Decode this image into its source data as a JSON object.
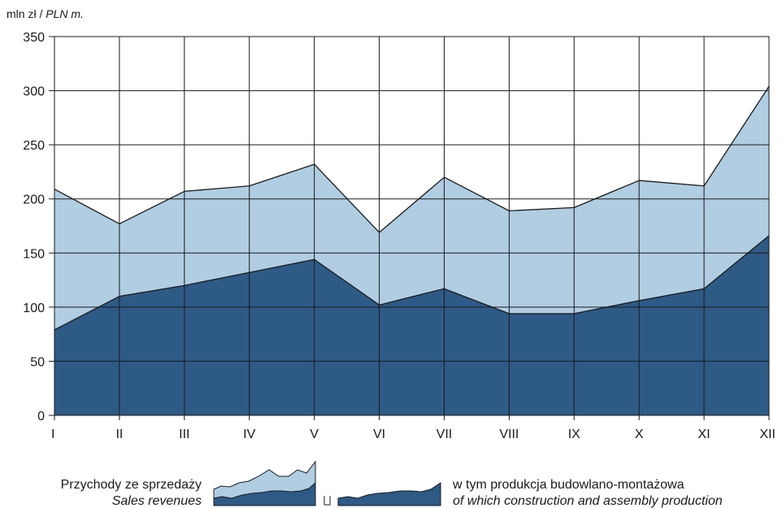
{
  "chart_data": {
    "type": "area",
    "unit_label": "mln zł / ",
    "unit_label_italic": "PLN m.",
    "categories": [
      "I",
      "II",
      "III",
      "IV",
      "V",
      "VI",
      "VII",
      "VIII",
      "IX",
      "X",
      "XI",
      "XII"
    ],
    "series": [
      {
        "key": "sales",
        "values": [
          209,
          177,
          207,
          212,
          232,
          169,
          220,
          189,
          192,
          217,
          212,
          304
        ],
        "color": "#b0cde2"
      },
      {
        "key": "construction",
        "values": [
          79,
          110,
          120,
          132,
          144,
          102,
          117,
          94,
          94,
          106,
          117,
          166
        ],
        "color": "#2e5a86"
      }
    ],
    "ylim": [
      0,
      350
    ],
    "yticks": [
      0,
      50,
      100,
      150,
      200,
      250,
      300,
      350
    ],
    "grid": true
  },
  "legend": {
    "sales_pl": "Przychody ze sprzedaży",
    "sales_en": "Sales revenues",
    "construction_pl": "w tym produkcja budowlano-montażowa",
    "construction_en": "of which construction and assembly production"
  }
}
